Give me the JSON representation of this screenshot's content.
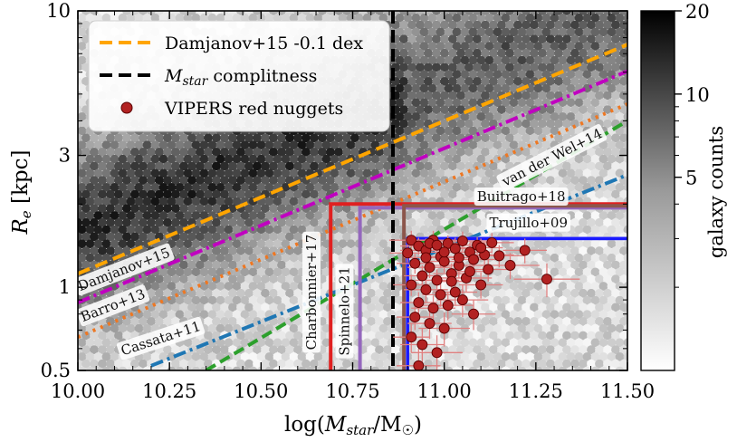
{
  "chart_data": {
    "type": "scatter",
    "xlabel": "log(M_star/M_sun)",
    "ylabel": "R_e [kpc]",
    "xlim": [
      10.0,
      11.5
    ],
    "ylim": [
      0.5,
      10
    ],
    "yscale": "log",
    "xticks": [
      {
        "value": 10.0,
        "label": "10.00"
      },
      {
        "value": 10.25,
        "label": "10.25"
      },
      {
        "value": 10.5,
        "label": "10.50"
      },
      {
        "value": 10.75,
        "label": "10.75"
      },
      {
        "value": 11.0,
        "label": "11.00"
      },
      {
        "value": 11.25,
        "label": "11.25"
      },
      {
        "value": 11.5,
        "label": "11.50"
      }
    ],
    "yticks": [
      {
        "value": 0.5,
        "label": "0.5"
      },
      {
        "value": 1,
        "label": "1"
      },
      {
        "value": 3,
        "label": "3"
      },
      {
        "value": 10,
        "label": "10"
      }
    ],
    "legend": {
      "placement": "top-left",
      "entries": [
        {
          "label": "Damjanov+15 -0.1 dex",
          "color": "#ffa500",
          "style": "dashed"
        },
        {
          "label": "M_star complitness",
          "color": "#000000",
          "style": "dashed"
        },
        {
          "label": "VIPERS red nuggets",
          "color": "#b22222",
          "style": "marker"
        }
      ]
    },
    "colorbar": {
      "label": "galaxy counts",
      "scale": "log",
      "range": [
        1,
        20
      ],
      "ticks": [
        {
          "value": 5,
          "label": "5"
        },
        {
          "value": 10,
          "label": "10"
        },
        {
          "value": 20,
          "label": "20"
        }
      ]
    },
    "completeness_mass": 10.86,
    "lines": [
      {
        "name": "Damjanov+15 -0.1 dex",
        "color": "#ffa500",
        "dash": "14 7",
        "x": [
          10.0,
          11.5
        ],
        "y": [
          1.12,
          7.55
        ]
      },
      {
        "name": "Damjanov+15",
        "color": "#c000c0",
        "dash": "14 5 3 5",
        "x": [
          10.0,
          11.5
        ],
        "y": [
          0.88,
          6.05
        ]
      },
      {
        "name": "Barro+13",
        "color": "#ee7722",
        "dash": "3 6",
        "x": [
          10.0,
          11.5
        ],
        "y": [
          0.66,
          4.6
        ]
      },
      {
        "name": "van der Wel+14",
        "color": "#2ca02c",
        "dash": "12 6",
        "x": [
          10.35,
          11.5
        ],
        "y": [
          0.5,
          4.0
        ]
      },
      {
        "name": "Cassata+11",
        "color": "#1f77b4",
        "dash": "14 5 3 5",
        "x": [
          10.2,
          11.5
        ],
        "y": [
          0.52,
          2.55
        ]
      }
    ],
    "selection_boxes": [
      {
        "name": "Charbonnier+17",
        "color": "#e02020",
        "x_min": 10.69,
        "r_max": 2.0
      },
      {
        "name": "Spinnelo+21",
        "color": "#9467bd",
        "x_min": 10.77,
        "r_max": 1.94
      },
      {
        "name": "Buitrago+18",
        "color": "#8c564b",
        "x_min": 10.89,
        "r_max": 1.97
      },
      {
        "name": "Trujillo+09",
        "color": "#bbbbf0",
        "x_min": 10.9,
        "r_max": 1.5
      },
      {
        "name": "VIPERS",
        "color": "#1a1aff",
        "x_min": 10.9,
        "r_max": 1.5
      }
    ],
    "annotations": [
      {
        "label": "Damjanov+15",
        "x": 10.13,
        "y": 1.12,
        "angle": -21
      },
      {
        "label": "Barro+13",
        "x": 10.1,
        "y": 0.83,
        "angle": -21
      },
      {
        "label": "Cassata+11",
        "x": 10.23,
        "y": 0.63,
        "angle": -18
      },
      {
        "label": "van der Wel+14",
        "x": 11.3,
        "y": 2.85,
        "angle": -27
      },
      {
        "label": "Buitrago+18",
        "x": 11.21,
        "y": 2.05,
        "angle": 0
      },
      {
        "label": "Trujillo+09",
        "x": 11.23,
        "y": 1.65,
        "angle": 0
      },
      {
        "label": "Charbonnier+17",
        "x": 10.65,
        "y": 0.96,
        "angle": -90
      },
      {
        "label": "Spinnelo+21",
        "x": 10.74,
        "y": 0.82,
        "angle": -90
      }
    ],
    "points": [
      {
        "x": 10.91,
        "y": 1.48,
        "xerr": 0.06,
        "yerr": 0.12
      },
      {
        "x": 10.93,
        "y": 1.41,
        "xerr": 0.05,
        "yerr": 0.1
      },
      {
        "x": 10.95,
        "y": 1.36,
        "xerr": 0.07,
        "yerr": 0.14
      },
      {
        "x": 10.97,
        "y": 1.48,
        "xerr": 0.06,
        "yerr": 0.12
      },
      {
        "x": 10.99,
        "y": 1.29,
        "xerr": 0.05,
        "yerr": 0.11
      },
      {
        "x": 11.01,
        "y": 1.44,
        "xerr": 0.05,
        "yerr": 0.1
      },
      {
        "x": 11.03,
        "y": 1.38,
        "xerr": 0.06,
        "yerr": 0.13
      },
      {
        "x": 11.05,
        "y": 1.47,
        "xerr": 0.07,
        "yerr": 0.12
      },
      {
        "x": 11.07,
        "y": 1.34,
        "xerr": 0.06,
        "yerr": 0.11
      },
      {
        "x": 11.09,
        "y": 1.42,
        "xerr": 0.05,
        "yerr": 0.1
      },
      {
        "x": 11.11,
        "y": 1.31,
        "xerr": 0.08,
        "yerr": 0.14
      },
      {
        "x": 11.13,
        "y": 1.45,
        "xerr": 0.06,
        "yerr": 0.12
      },
      {
        "x": 10.92,
        "y": 1.22,
        "xerr": 0.05,
        "yerr": 0.1
      },
      {
        "x": 10.96,
        "y": 1.18,
        "xerr": 0.06,
        "yerr": 0.1
      },
      {
        "x": 11.0,
        "y": 1.24,
        "xerr": 0.05,
        "yerr": 0.11
      },
      {
        "x": 11.04,
        "y": 1.2,
        "xerr": 0.07,
        "yerr": 0.12
      },
      {
        "x": 11.08,
        "y": 1.26,
        "xerr": 0.06,
        "yerr": 0.11
      },
      {
        "x": 10.94,
        "y": 1.1,
        "xerr": 0.05,
        "yerr": 0.1
      },
      {
        "x": 10.98,
        "y": 1.06,
        "xerr": 0.06,
        "yerr": 0.1
      },
      {
        "x": 11.02,
        "y": 1.12,
        "xerr": 0.05,
        "yerr": 0.1
      },
      {
        "x": 11.06,
        "y": 1.08,
        "xerr": 0.07,
        "yerr": 0.12
      },
      {
        "x": 10.91,
        "y": 1.02,
        "xerr": 0.05,
        "yerr": 0.09
      },
      {
        "x": 10.95,
        "y": 0.98,
        "xerr": 0.06,
        "yerr": 0.1
      },
      {
        "x": 10.99,
        "y": 0.94,
        "xerr": 0.05,
        "yerr": 0.09
      },
      {
        "x": 11.03,
        "y": 0.96,
        "xerr": 0.06,
        "yerr": 0.1
      },
      {
        "x": 10.93,
        "y": 0.88,
        "xerr": 0.05,
        "yerr": 0.08
      },
      {
        "x": 10.97,
        "y": 0.84,
        "xerr": 0.06,
        "yerr": 0.09
      },
      {
        "x": 11.01,
        "y": 0.86,
        "xerr": 0.07,
        "yerr": 0.1
      },
      {
        "x": 10.92,
        "y": 0.78,
        "xerr": 0.05,
        "yerr": 0.08
      },
      {
        "x": 10.96,
        "y": 0.74,
        "xerr": 0.06,
        "yerr": 0.09
      },
      {
        "x": 11.0,
        "y": 0.71,
        "xerr": 0.07,
        "yerr": 0.1
      },
      {
        "x": 10.91,
        "y": 0.66,
        "xerr": 0.05,
        "yerr": 0.08
      },
      {
        "x": 10.94,
        "y": 0.62,
        "xerr": 0.06,
        "yerr": 0.09
      },
      {
        "x": 10.98,
        "y": 0.58,
        "xerr": 0.07,
        "yerr": 0.09
      },
      {
        "x": 10.93,
        "y": 0.52,
        "xerr": 0.06,
        "yerr": 0.08
      },
      {
        "x": 11.12,
        "y": 1.16,
        "xerr": 0.06,
        "yerr": 0.11
      },
      {
        "x": 11.15,
        "y": 1.3,
        "xerr": 0.07,
        "yerr": 0.12
      },
      {
        "x": 11.18,
        "y": 1.2,
        "xerr": 0.08,
        "yerr": 0.13
      },
      {
        "x": 11.22,
        "y": 1.36,
        "xerr": 0.06,
        "yerr": 0.14
      },
      {
        "x": 11.28,
        "y": 1.07,
        "xerr": 0.09,
        "yerr": 0.15
      },
      {
        "x": 11.1,
        "y": 1.02,
        "xerr": 0.06,
        "yerr": 0.11
      },
      {
        "x": 11.05,
        "y": 0.9,
        "xerr": 0.07,
        "yerr": 0.12
      },
      {
        "x": 11.08,
        "y": 0.8,
        "xerr": 0.06,
        "yerr": 0.1
      },
      {
        "x": 10.96,
        "y": 1.44,
        "xerr": 0.05,
        "yerr": 0.1
      },
      {
        "x": 11.0,
        "y": 1.34,
        "xerr": 0.06,
        "yerr": 0.11
      },
      {
        "x": 11.02,
        "y": 1.05,
        "xerr": 0.05,
        "yerr": 0.1
      },
      {
        "x": 10.95,
        "y": 1.28,
        "xerr": 0.06,
        "yerr": 0.11
      },
      {
        "x": 11.04,
        "y": 1.28,
        "xerr": 0.06,
        "yerr": 0.11
      },
      {
        "x": 10.98,
        "y": 1.42,
        "xerr": 0.05,
        "yerr": 0.1
      },
      {
        "x": 11.07,
        "y": 1.14,
        "xerr": 0.06,
        "yerr": 0.1
      },
      {
        "x": 10.9,
        "y": 1.33,
        "xerr": 0.05,
        "yerr": 0.1
      },
      {
        "x": 11.1,
        "y": 1.39,
        "xerr": 0.06,
        "yerr": 0.11
      }
    ]
  }
}
